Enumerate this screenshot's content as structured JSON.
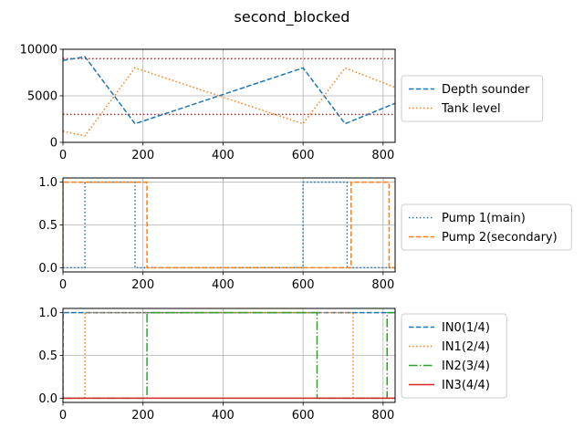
{
  "figure": {
    "title": "second_blocked"
  },
  "chart_data": [
    {
      "type": "line",
      "xlim": [
        0,
        830
      ],
      "ylim": [
        0,
        10000
      ],
      "xticks": [
        0,
        200,
        400,
        600,
        800
      ],
      "yticks": [
        0,
        5000,
        10000
      ],
      "ytick_labels": [
        "0",
        "5000",
        "10000"
      ],
      "grid": true,
      "legend_position": "right",
      "series": [
        {
          "name": "Depth sounder",
          "color": "#1f77b4",
          "style": "dashed",
          "x": [
            0,
            55,
            180,
            600,
            705,
            830
          ],
          "y": [
            8800,
            9200,
            2000,
            8000,
            2000,
            4200
          ]
        },
        {
          "name": "Tank level",
          "color": "#ff7f0e",
          "style": "dotted",
          "x": [
            0,
            55,
            180,
            600,
            705,
            830
          ],
          "y": [
            1200,
            700,
            8000,
            2000,
            8000,
            5900
          ]
        }
      ],
      "hlines": [
        {
          "y": 9000,
          "color": "#d62728",
          "style": "dotted"
        },
        {
          "y": 3000,
          "color": "#d62728",
          "style": "dotted"
        }
      ]
    },
    {
      "type": "line",
      "xlim": [
        0,
        830
      ],
      "ylim": [
        -0.05,
        1.05
      ],
      "xticks": [
        0,
        200,
        400,
        600,
        800
      ],
      "yticks": [
        0,
        0.5,
        1
      ],
      "ytick_labels": [
        "0.0",
        "0.5",
        "1.0"
      ],
      "grid": true,
      "legend_position": "right",
      "series": [
        {
          "name": "Pump 1(main)",
          "color": "#1f77b4",
          "style": "dotted",
          "x": [
            0,
            55,
            55,
            180,
            180,
            600,
            600,
            710,
            710,
            830
          ],
          "y": [
            0,
            0,
            1,
            1,
            0,
            0,
            1,
            1,
            0,
            0
          ]
        },
        {
          "name": "Pump 2(secondary)",
          "color": "#ff7f0e",
          "style": "dashed",
          "x": [
            0,
            0,
            210,
            210,
            720,
            720,
            815,
            815,
            830
          ],
          "y": [
            0,
            1,
            1,
            0,
            0,
            1,
            1,
            0,
            0
          ]
        }
      ]
    },
    {
      "type": "line",
      "xlim": [
        0,
        830
      ],
      "ylim": [
        -0.05,
        1.05
      ],
      "xticks": [
        0,
        200,
        400,
        600,
        800
      ],
      "yticks": [
        0,
        0.5,
        1
      ],
      "ytick_labels": [
        "0.0",
        "0.5",
        "1.0"
      ],
      "grid": true,
      "legend_position": "right",
      "series": [
        {
          "name": "IN0(1/4)",
          "color": "#1f77b4",
          "style": "dashed",
          "x": [
            0,
            0,
            830
          ],
          "y": [
            0,
            1,
            1
          ]
        },
        {
          "name": "IN1(2/4)",
          "color": "#ff7f0e",
          "style": "dotted",
          "x": [
            0,
            55,
            55,
            725,
            725,
            830
          ],
          "y": [
            0,
            0,
            1,
            1,
            0,
            0
          ]
        },
        {
          "name": "IN2(3/4)",
          "color": "#2ca02c",
          "style": "dashdot",
          "x": [
            0,
            210,
            210,
            635,
            635,
            810,
            810,
            830
          ],
          "y": [
            0,
            0,
            1,
            1,
            0,
            0,
            1,
            1
          ]
        },
        {
          "name": "IN3(4/4)",
          "color": "#d62728",
          "style": "solid",
          "x": [
            0,
            830
          ],
          "y": [
            0,
            0
          ]
        }
      ]
    }
  ]
}
